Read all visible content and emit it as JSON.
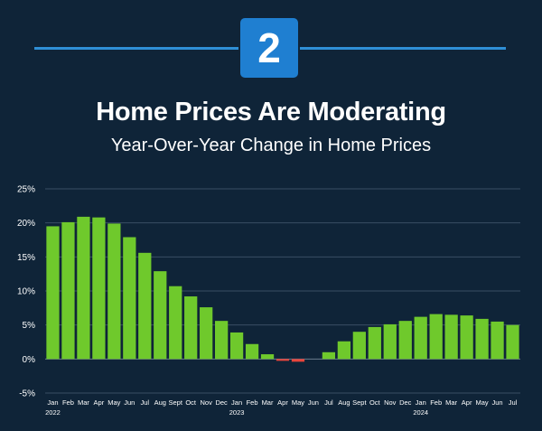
{
  "badge": {
    "number": "2"
  },
  "chart_data": {
    "type": "bar",
    "title": "Home Prices Are Moderating",
    "subtitle": "Year-Over-Year Change in Home Prices",
    "categories": [
      "Jan",
      "Feb",
      "Mar",
      "Apr",
      "May",
      "Jun",
      "Jul",
      "Aug",
      "Sept",
      "Oct",
      "Nov",
      "Dec",
      "Jan",
      "Feb",
      "Mar",
      "Apr",
      "May",
      "Jun",
      "Jul",
      "Aug",
      "Sept",
      "Oct",
      "Nov",
      "Dec",
      "Jan",
      "Feb",
      "Mar",
      "Apr",
      "May",
      "Jun",
      "Jul"
    ],
    "year_labels": [
      {
        "index": 0,
        "label": "2022"
      },
      {
        "index": 12,
        "label": "2023"
      },
      {
        "index": 24,
        "label": "2024"
      }
    ],
    "values": [
      19.5,
      20.1,
      20.9,
      20.8,
      19.9,
      17.9,
      15.6,
      12.9,
      10.7,
      9.2,
      7.6,
      5.6,
      3.9,
      2.2,
      0.7,
      -0.1,
      -0.4,
      0.0,
      1.0,
      2.6,
      4.0,
      4.7,
      5.1,
      5.6,
      6.2,
      6.6,
      6.5,
      6.4,
      5.9,
      5.5,
      5.0
    ],
    "ylim": [
      -5,
      25
    ],
    "yticks": [
      -5,
      0,
      5,
      10,
      15,
      20,
      25
    ],
    "ytick_labels": [
      "-5%",
      "0%",
      "5%",
      "10%",
      "15%",
      "20%",
      "25%"
    ],
    "grid": true,
    "colors": {
      "positive": "#6fc92c",
      "negative": "#e8453c",
      "grid": "#3a4e63",
      "zero_line": "#6b7c8e",
      "text": "#ffffff"
    }
  }
}
